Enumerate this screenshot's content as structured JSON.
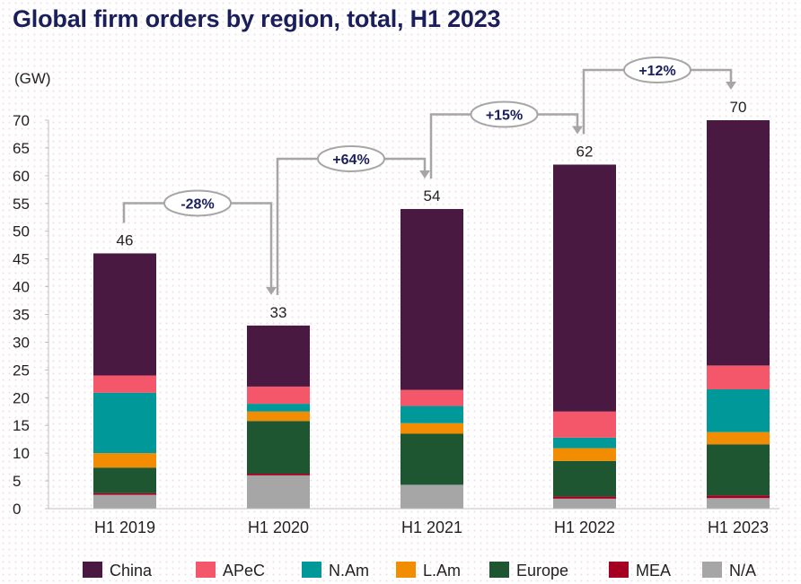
{
  "title": "Global firm orders by region, total, H1 2023",
  "unit_label": "(GW)",
  "chart_data": {
    "type": "bar",
    "stacked": true,
    "categories": [
      "H1 2019",
      "H1 2020",
      "H1 2021",
      "H1 2022",
      "H1 2023"
    ],
    "ylim": [
      0,
      70
    ],
    "yticks": [
      0,
      5,
      10,
      15,
      20,
      25,
      30,
      35,
      40,
      45,
      50,
      55,
      60,
      65,
      70
    ],
    "grid": false,
    "legend_position": "bottom",
    "series": [
      {
        "name": "N/A",
        "color": "#a6a6a6",
        "values": [
          2.5,
          6.0,
          4.3,
          1.8,
          1.9
        ]
      },
      {
        "name": "MEA",
        "color": "#a50021",
        "values": [
          0.3,
          0.3,
          0.0,
          0.4,
          0.5
        ]
      },
      {
        "name": "Europe",
        "color": "#1e5631",
        "values": [
          4.6,
          9.5,
          9.2,
          6.4,
          9.2
        ]
      },
      {
        "name": "L.Am",
        "color": "#f28c00",
        "values": [
          2.6,
          1.7,
          1.9,
          2.3,
          2.2
        ]
      },
      {
        "name": "N.Am",
        "color": "#009899",
        "values": [
          10.9,
          1.4,
          3.1,
          1.9,
          7.7
        ]
      },
      {
        "name": "APeC",
        "color": "#f4566a",
        "values": [
          3.1,
          3.1,
          2.9,
          4.7,
          4.3
        ]
      },
      {
        "name": "China",
        "color": "#4a1942",
        "values": [
          22.0,
          11.0,
          32.6,
          44.5,
          44.2
        ]
      }
    ],
    "legend_order": [
      "China",
      "APeC",
      "N.Am",
      "L.Am",
      "Europe",
      "MEA",
      "N/A"
    ],
    "totals": [
      "46",
      "33",
      "54",
      "62",
      "70"
    ],
    "totals_values": [
      46,
      33,
      54,
      62,
      70
    ],
    "changes": [
      {
        "from": 0,
        "to": 1,
        "label": "-28%"
      },
      {
        "from": 1,
        "to": 2,
        "label": "+64%"
      },
      {
        "from": 2,
        "to": 3,
        "label": "+15%"
      },
      {
        "from": 3,
        "to": 4,
        "label": "+12%"
      }
    ]
  }
}
